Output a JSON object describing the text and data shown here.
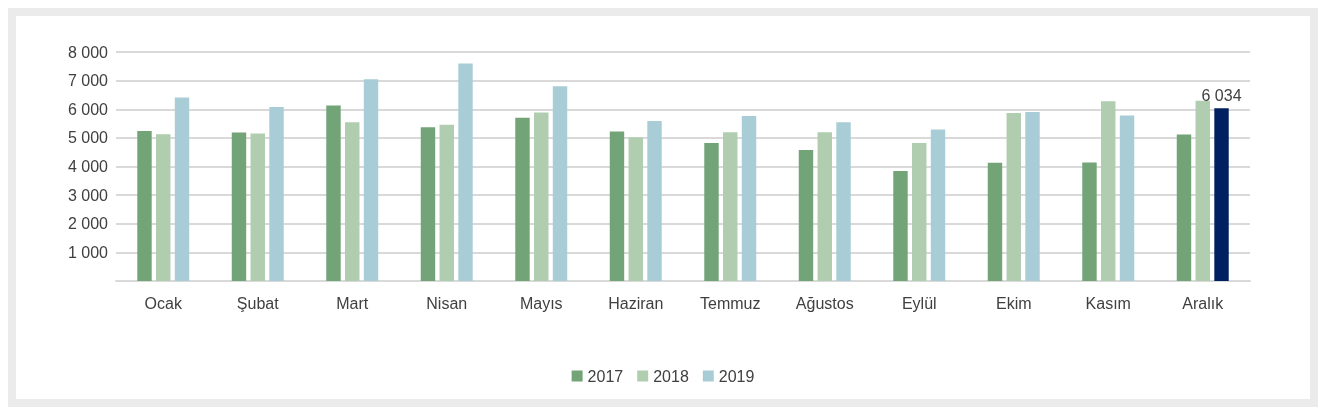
{
  "chart_data": {
    "type": "bar",
    "categories": [
      "Ocak",
      "Şubat",
      "Mart",
      "Nisan",
      "Mayıs",
      "Haziran",
      "Temmuz",
      "Ağustos",
      "Eylül",
      "Ekim",
      "Kasım",
      "Aralık"
    ],
    "series": [
      {
        "name": "2017",
        "color": "#73a478",
        "values": [
          5240,
          5190,
          6130,
          5370,
          5700,
          5220,
          4820,
          4580,
          3840,
          4130,
          4140,
          5120
        ]
      },
      {
        "name": "2018",
        "color": "#b0cdb0",
        "values": [
          5130,
          5150,
          5550,
          5460,
          5890,
          5020,
          5200,
          5200,
          4820,
          5870,
          6280,
          6300
        ]
      },
      {
        "name": "2019",
        "color": "#a9cdd6",
        "colors": [
          "#a9cdd6",
          "#a9cdd6",
          "#a9cdd6",
          "#a9cdd6",
          "#a9cdd6",
          "#a9cdd6",
          "#a9cdd6",
          "#a9cdd6",
          "#a9cdd6",
          "#a9cdd6",
          "#a9cdd6",
          "#002060"
        ],
        "values": [
          6410,
          6080,
          7050,
          7600,
          6800,
          5590,
          5760,
          5550,
          5290,
          5900,
          5780,
          6034
        ],
        "value_labels": [
          null,
          null,
          null,
          null,
          null,
          null,
          null,
          null,
          null,
          null,
          null,
          "6 034"
        ]
      }
    ],
    "ylim": [
      0,
      8000
    ],
    "yticks": [
      {
        "value": 0,
        "label": null
      },
      {
        "value": 1000,
        "label": "1 000"
      },
      {
        "value": 2000,
        "label": "2 000"
      },
      {
        "value": 3000,
        "label": "3 000"
      },
      {
        "value": 4000,
        "label": "4 000"
      },
      {
        "value": 5000,
        "label": "5 000"
      },
      {
        "value": 6000,
        "label": "6 000"
      },
      {
        "value": 7000,
        "label": "7 000"
      },
      {
        "value": 8000,
        "label": "8 000"
      }
    ],
    "grid": "y",
    "legend": "bottom"
  }
}
